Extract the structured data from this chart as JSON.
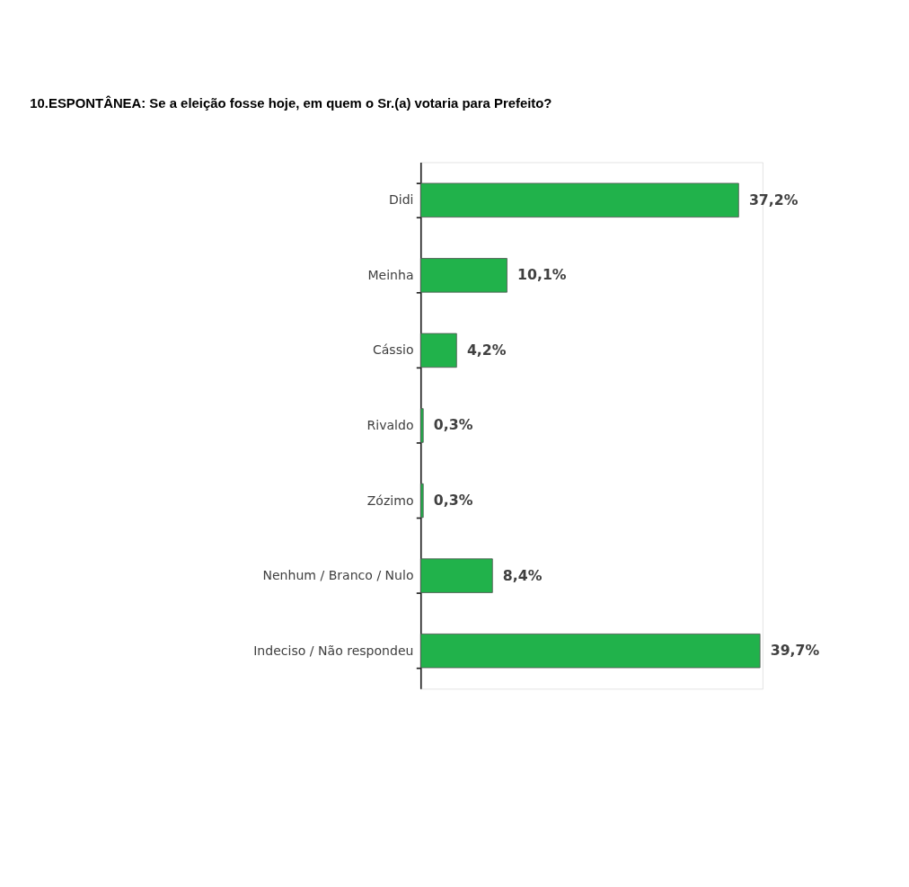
{
  "chart_data": {
    "type": "bar",
    "orientation": "horizontal",
    "title": "10.ESPONTÂNEA: Se a eleição fosse hoje, em quem o Sr.(a) votaria para Prefeito?",
    "categories": [
      "Didi",
      "Meinha",
      "Cássio",
      "Rivaldo",
      "Zózimo",
      "Nenhum / Branco / Nulo",
      "Indeciso / Não respondeu"
    ],
    "values": [
      37.2,
      10.1,
      4.2,
      0.3,
      0.3,
      8.4,
      39.7
    ],
    "value_labels": [
      "37,2%",
      "10,1%",
      "4,2%",
      "0,3%",
      "0,3%",
      "8,4%",
      "39,7%"
    ],
    "color": "#21b24b",
    "tick_labels": "y",
    "grid": false
  }
}
